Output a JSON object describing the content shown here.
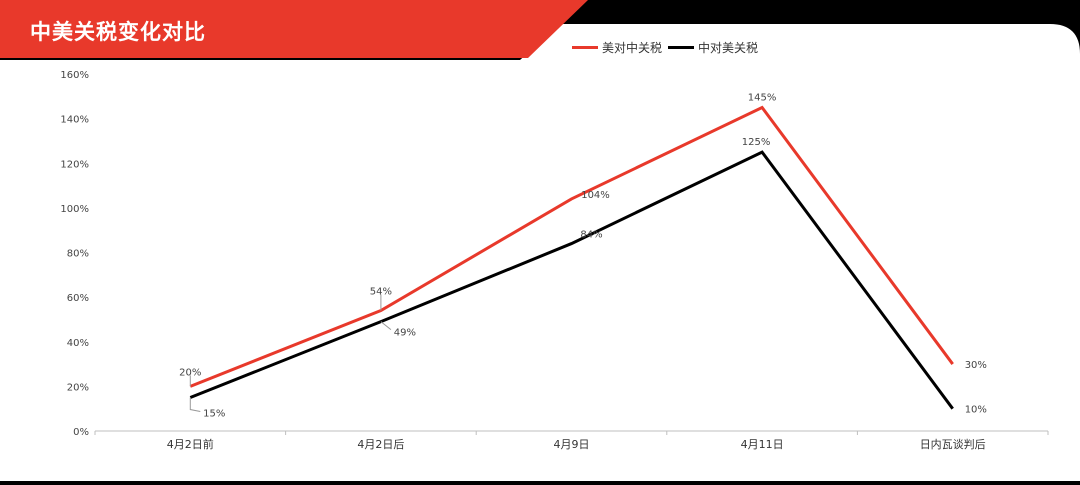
{
  "title": "中美关税变化对比",
  "colors": {
    "banner": "#e8392b",
    "background": "#000000",
    "panel": "#ffffff",
    "series_us_on_cn": "#e8392b",
    "series_cn_on_us": "#000000"
  },
  "chart_data": {
    "type": "line",
    "title": "中美关税变化对比",
    "categories": [
      "4月2日前",
      "4月2日后",
      "4月9日",
      "4月11日",
      "日内瓦谈判后"
    ],
    "series": [
      {
        "name": "美对中关税",
        "values": [
          20,
          54,
          104,
          145,
          30
        ],
        "labels": [
          "20%",
          "54%",
          "104%",
          "145%",
          "30%"
        ]
      },
      {
        "name": "中对美关税",
        "values": [
          15,
          49,
          84,
          125,
          10
        ],
        "labels": [
          "15%",
          "49%",
          "84%",
          "125%",
          "10%"
        ]
      }
    ],
    "y_ticks": [
      "0%",
      "20%",
      "40%",
      "60%",
      "80%",
      "100%",
      "120%",
      "140%",
      "160%"
    ],
    "ylim": [
      0,
      160
    ],
    "legend": "top-right",
    "grid": false
  }
}
